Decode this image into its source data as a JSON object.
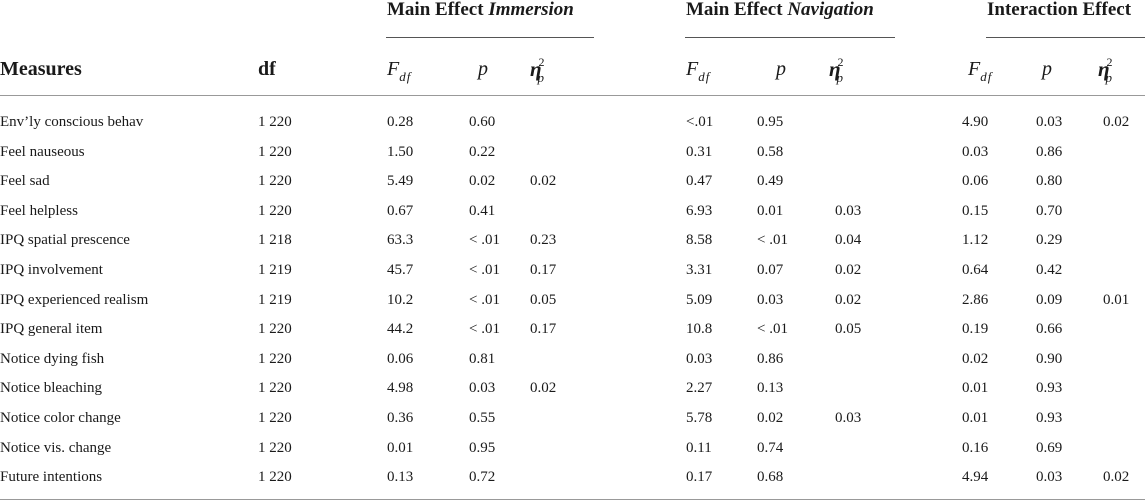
{
  "groups": {
    "immersion": {
      "prefix": "Main Effect ",
      "emph": "Immersion"
    },
    "navigation": {
      "prefix": "Main Effect ",
      "emph": "Navigation"
    },
    "interaction": {
      "label": "Interaction Effect"
    }
  },
  "columns": {
    "measures": "Measures",
    "df": "df",
    "f_symbol": "F",
    "f_subscript": "df",
    "p": "p",
    "eta_symbol": "η",
    "eta_sup": "2",
    "eta_sub": "p"
  },
  "rows": [
    {
      "measure": "Env’ly conscious behav",
      "df": "1 220",
      "imm_f": "0.28",
      "imm_p": "0.60",
      "imm_eta": "",
      "nav_f": "<.01",
      "nav_p": "0.95",
      "nav_eta": "",
      "int_f": "4.90",
      "int_p": "0.03",
      "int_eta": "0.02"
    },
    {
      "measure": "Feel nauseous",
      "df": "1 220",
      "imm_f": "1.50",
      "imm_p": "0.22",
      "imm_eta": "",
      "nav_f": "0.31",
      "nav_p": "0.58",
      "nav_eta": "",
      "int_f": "0.03",
      "int_p": "0.86",
      "int_eta": ""
    },
    {
      "measure": "Feel sad",
      "df": "1 220",
      "imm_f": "5.49",
      "imm_p": "0.02",
      "imm_eta": "0.02",
      "nav_f": "0.47",
      "nav_p": "0.49",
      "nav_eta": "",
      "int_f": "0.06",
      "int_p": "0.80",
      "int_eta": ""
    },
    {
      "measure": "Feel helpless",
      "df": "1 220",
      "imm_f": "0.67",
      "imm_p": "0.41",
      "imm_eta": "",
      "nav_f": "6.93",
      "nav_p": "0.01",
      "nav_eta": "0.03",
      "int_f": "0.15",
      "int_p": "0.70",
      "int_eta": ""
    },
    {
      "measure": "IPQ spatial prescence",
      "df": "1 218",
      "imm_f": "63.3",
      "imm_p": "< .01",
      "imm_eta": "0.23",
      "nav_f": "8.58",
      "nav_p": "< .01",
      "nav_eta": "0.04",
      "int_f": "1.12",
      "int_p": "0.29",
      "int_eta": ""
    },
    {
      "measure": "IPQ involvement",
      "df": "1 219",
      "imm_f": "45.7",
      "imm_p": "< .01",
      "imm_eta": "0.17",
      "nav_f": "3.31",
      "nav_p": "0.07",
      "nav_eta": "0.02",
      "int_f": "0.64",
      "int_p": "0.42",
      "int_eta": ""
    },
    {
      "measure": "IPQ experienced realism",
      "df": "1 219",
      "imm_f": "10.2",
      "imm_p": "< .01",
      "imm_eta": "0.05",
      "nav_f": "5.09",
      "nav_p": "0.03",
      "nav_eta": "0.02",
      "int_f": "2.86",
      "int_p": "0.09",
      "int_eta": "0.01"
    },
    {
      "measure": "IPQ general item",
      "df": "1 220",
      "imm_f": "44.2",
      "imm_p": "< .01",
      "imm_eta": "0.17",
      "nav_f": "10.8",
      "nav_p": "< .01",
      "nav_eta": "0.05",
      "int_f": "0.19",
      "int_p": "0.66",
      "int_eta": ""
    },
    {
      "measure": "Notice dying fish",
      "df": "1 220",
      "imm_f": "0.06",
      "imm_p": "0.81",
      "imm_eta": "",
      "nav_f": "0.03",
      "nav_p": "0.86",
      "nav_eta": "",
      "int_f": "0.02",
      "int_p": "0.90",
      "int_eta": ""
    },
    {
      "measure": "Notice bleaching",
      "df": "1 220",
      "imm_f": "4.98",
      "imm_p": "0.03",
      "imm_eta": "0.02",
      "nav_f": "2.27",
      "nav_p": "0.13",
      "nav_eta": "",
      "int_f": "0.01",
      "int_p": "0.93",
      "int_eta": ""
    },
    {
      "measure": "Notice color change",
      "df": "1 220",
      "imm_f": "0.36",
      "imm_p": "0.55",
      "imm_eta": "",
      "nav_f": "5.78",
      "nav_p": "0.02",
      "nav_eta": "0.03",
      "int_f": "0.01",
      "int_p": "0.93",
      "int_eta": ""
    },
    {
      "measure": "Notice vis. change",
      "df": "1 220",
      "imm_f": "0.01",
      "imm_p": "0.95",
      "imm_eta": "",
      "nav_f": "0.11",
      "nav_p": "0.74",
      "nav_eta": "",
      "int_f": "0.16",
      "int_p": "0.69",
      "int_eta": ""
    },
    {
      "measure": "Future intentions",
      "df": "1 220",
      "imm_f": "0.13",
      "imm_p": "0.72",
      "imm_eta": "",
      "nav_f": "0.17",
      "nav_p": "0.68",
      "nav_eta": "",
      "int_f": "4.94",
      "int_p": "0.03",
      "int_eta": "0.02"
    }
  ]
}
